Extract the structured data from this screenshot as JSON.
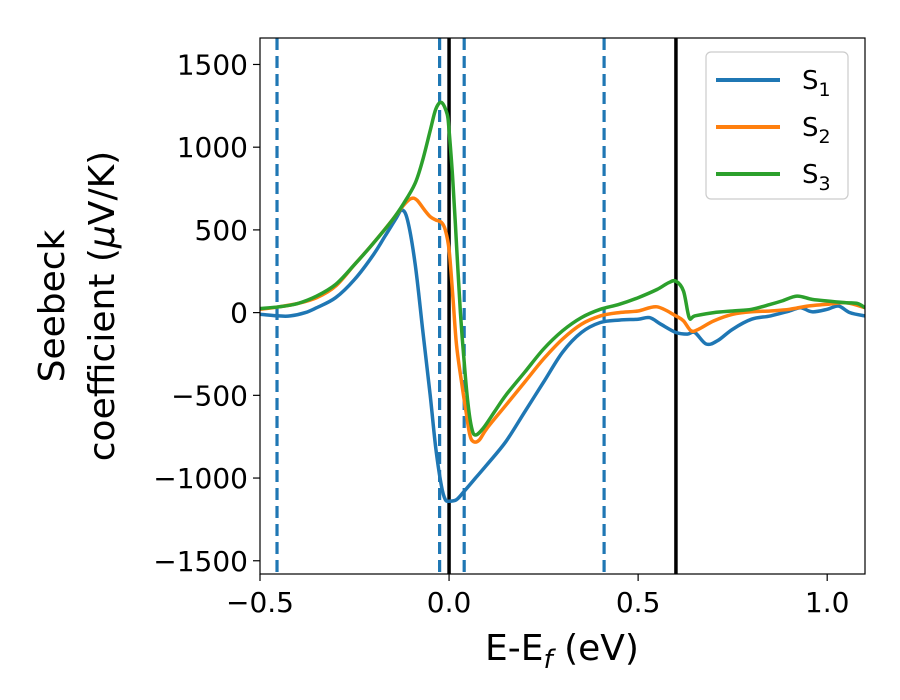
{
  "chart_data": {
    "type": "line",
    "xlabel": {
      "main": "E-E",
      "sub": "f",
      "unit": " (eV)"
    },
    "ylabel": {
      "line1": "Seebeck",
      "line2_prefix": "coefficient  (",
      "mu": "μ",
      "line2_suffix": "V/K)"
    },
    "xlim": [
      -0.5,
      1.1
    ],
    "ylim": [
      -1580,
      1660
    ],
    "xticks": [
      {
        "value": -0.5,
        "label": "−0.5"
      },
      {
        "value": 0.0,
        "label": "0.0"
      },
      {
        "value": 0.5,
        "label": "0.5"
      },
      {
        "value": 1.0,
        "label": "1.0"
      }
    ],
    "yticks": [
      {
        "value": -1500,
        "label": "−1500"
      },
      {
        "value": -1000,
        "label": "−1000"
      },
      {
        "value": -500,
        "label": "−500"
      },
      {
        "value": 0,
        "label": "0"
      },
      {
        "value": 500,
        "label": "500"
      },
      {
        "value": 1000,
        "label": "1000"
      },
      {
        "value": 1500,
        "label": "1500"
      }
    ],
    "grid": false,
    "legend_position": "top-right",
    "vlines_solid": [
      0.0,
      0.6
    ],
    "vlines_dashed": [
      -0.455,
      -0.025,
      0.04,
      0.41
    ],
    "vline_dashed_color": "#1f77b4",
    "vline_solid_color": "#000000",
    "series": [
      {
        "name": "S",
        "sub": "1",
        "color": "#1f77b4",
        "points": [
          [
            -0.5,
            -10
          ],
          [
            -0.45,
            -20
          ],
          [
            -0.42,
            -20
          ],
          [
            -0.38,
            0
          ],
          [
            -0.35,
            30
          ],
          [
            -0.3,
            90
          ],
          [
            -0.25,
            200
          ],
          [
            -0.2,
            350
          ],
          [
            -0.17,
            460
          ],
          [
            -0.14,
            570
          ],
          [
            -0.125,
            620
          ],
          [
            -0.11,
            560
          ],
          [
            -0.09,
            300
          ],
          [
            -0.07,
            -100
          ],
          [
            -0.05,
            -500
          ],
          [
            -0.035,
            -820
          ],
          [
            -0.02,
            -1050
          ],
          [
            -0.01,
            -1130
          ],
          [
            0.0,
            -1140
          ],
          [
            0.02,
            -1130
          ],
          [
            0.04,
            -1080
          ],
          [
            0.07,
            -1000
          ],
          [
            0.1,
            -920
          ],
          [
            0.15,
            -780
          ],
          [
            0.2,
            -600
          ],
          [
            0.25,
            -420
          ],
          [
            0.3,
            -240
          ],
          [
            0.35,
            -120
          ],
          [
            0.4,
            -60
          ],
          [
            0.45,
            -45
          ],
          [
            0.5,
            -40
          ],
          [
            0.53,
            -30
          ],
          [
            0.56,
            -70
          ],
          [
            0.6,
            -120
          ],
          [
            0.63,
            -130
          ],
          [
            0.65,
            -120
          ],
          [
            0.68,
            -190
          ],
          [
            0.71,
            -170
          ],
          [
            0.75,
            -100
          ],
          [
            0.8,
            -40
          ],
          [
            0.85,
            -20
          ],
          [
            0.9,
            10
          ],
          [
            0.93,
            30
          ],
          [
            0.96,
            5
          ],
          [
            1.0,
            20
          ],
          [
            1.03,
            40
          ],
          [
            1.06,
            0
          ],
          [
            1.1,
            -20
          ]
        ]
      },
      {
        "name": "S",
        "sub": "2",
        "color": "#ff7f0e",
        "points": [
          [
            -0.5,
            20
          ],
          [
            -0.45,
            35
          ],
          [
            -0.4,
            55
          ],
          [
            -0.35,
            90
          ],
          [
            -0.3,
            160
          ],
          [
            -0.25,
            290
          ],
          [
            -0.2,
            420
          ],
          [
            -0.15,
            560
          ],
          [
            -0.12,
            650
          ],
          [
            -0.1,
            690
          ],
          [
            -0.085,
            680
          ],
          [
            -0.065,
            620
          ],
          [
            -0.05,
            580
          ],
          [
            -0.035,
            560
          ],
          [
            -0.02,
            545
          ],
          [
            -0.01,
            500
          ],
          [
            0.0,
            380
          ],
          [
            0.01,
            100
          ],
          [
            0.02,
            -200
          ],
          [
            0.035,
            -450
          ],
          [
            0.045,
            -600
          ],
          [
            0.055,
            -740
          ],
          [
            0.065,
            -780
          ],
          [
            0.08,
            -770
          ],
          [
            0.1,
            -700
          ],
          [
            0.15,
            -560
          ],
          [
            0.2,
            -420
          ],
          [
            0.25,
            -280
          ],
          [
            0.3,
            -160
          ],
          [
            0.35,
            -70
          ],
          [
            0.4,
            -20
          ],
          [
            0.45,
            0
          ],
          [
            0.5,
            10
          ],
          [
            0.55,
            35
          ],
          [
            0.6,
            -20
          ],
          [
            0.62,
            -50
          ],
          [
            0.64,
            -110
          ],
          [
            0.66,
            -100
          ],
          [
            0.7,
            -50
          ],
          [
            0.75,
            -10
          ],
          [
            0.8,
            5
          ],
          [
            0.85,
            10
          ],
          [
            0.9,
            20
          ],
          [
            0.95,
            40
          ],
          [
            1.0,
            50
          ],
          [
            1.05,
            60
          ],
          [
            1.1,
            30
          ]
        ]
      },
      {
        "name": "S",
        "sub": "3",
        "color": "#2ca02c",
        "points": [
          [
            -0.5,
            25
          ],
          [
            -0.45,
            35
          ],
          [
            -0.4,
            55
          ],
          [
            -0.35,
            100
          ],
          [
            -0.3,
            170
          ],
          [
            -0.25,
            290
          ],
          [
            -0.2,
            420
          ],
          [
            -0.15,
            560
          ],
          [
            -0.12,
            660
          ],
          [
            -0.09,
            780
          ],
          [
            -0.07,
            920
          ],
          [
            -0.05,
            1100
          ],
          [
            -0.035,
            1230
          ],
          [
            -0.02,
            1270
          ],
          [
            -0.005,
            1200
          ],
          [
            0.0,
            1100
          ],
          [
            0.01,
            800
          ],
          [
            0.02,
            400
          ],
          [
            0.03,
            0
          ],
          [
            0.04,
            -300
          ],
          [
            0.05,
            -550
          ],
          [
            0.06,
            -700
          ],
          [
            0.07,
            -740
          ],
          [
            0.09,
            -700
          ],
          [
            0.12,
            -600
          ],
          [
            0.15,
            -500
          ],
          [
            0.2,
            -360
          ],
          [
            0.25,
            -220
          ],
          [
            0.3,
            -110
          ],
          [
            0.35,
            -30
          ],
          [
            0.4,
            20
          ],
          [
            0.45,
            50
          ],
          [
            0.5,
            90
          ],
          [
            0.55,
            140
          ],
          [
            0.58,
            180
          ],
          [
            0.6,
            190
          ],
          [
            0.62,
            130
          ],
          [
            0.635,
            -30
          ],
          [
            0.65,
            -20
          ],
          [
            0.7,
            0
          ],
          [
            0.75,
            10
          ],
          [
            0.8,
            20
          ],
          [
            0.85,
            50
          ],
          [
            0.88,
            70
          ],
          [
            0.92,
            100
          ],
          [
            0.96,
            80
          ],
          [
            1.0,
            70
          ],
          [
            1.05,
            60
          ],
          [
            1.08,
            55
          ],
          [
            1.1,
            30
          ]
        ]
      }
    ]
  }
}
